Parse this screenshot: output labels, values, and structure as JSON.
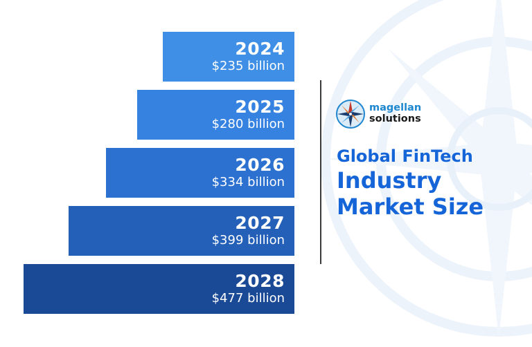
{
  "brand": {
    "name_line1": "magellan",
    "name_line2": "solutions"
  },
  "headline": {
    "line1": "Global FinTech",
    "line2": "Industry",
    "line3": "Market Size"
  },
  "colors": {
    "bar_gradient": [
      "#3f8fe6",
      "#3582e0",
      "#2c70d0",
      "#2460b8",
      "#1a4a96"
    ],
    "title": "#1565d8",
    "logo_accent": "#1f87cf"
  },
  "chart_data": {
    "type": "bar",
    "orientation": "horizontal",
    "categories": [
      "2024",
      "2025",
      "2026",
      "2027",
      "2028"
    ],
    "labels": [
      "$235 billion",
      "$280 billion",
      "$334 billion",
      "$399 billion",
      "$477 billion"
    ],
    "values": [
      235,
      280,
      334,
      399,
      477
    ],
    "value_unit": "$ billion",
    "title": "Global FinTech Industry Market Size"
  }
}
